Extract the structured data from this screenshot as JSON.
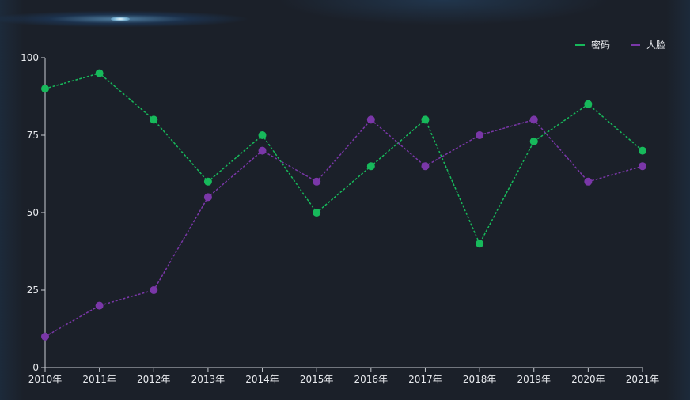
{
  "chart_data": {
    "type": "line",
    "categories": [
      "2010年",
      "2011年",
      "2012年",
      "2013年",
      "2014年",
      "2015年",
      "2016年",
      "2017年",
      "2018年",
      "2019年",
      "2020年",
      "2021年"
    ],
    "series": [
      {
        "name": "密码",
        "color": "#17b95b",
        "values": [
          90,
          95,
          80,
          60,
          75,
          50,
          65,
          80,
          40,
          73,
          85,
          70
        ]
      },
      {
        "name": "人脸",
        "color": "#7a37a8",
        "values": [
          10,
          20,
          25,
          55,
          70,
          60,
          80,
          65,
          75,
          80,
          60,
          65
        ]
      }
    ],
    "ylim": [
      0,
      100
    ],
    "yticks": [
      0,
      25,
      50,
      75,
      100
    ],
    "grid": false,
    "line_style": "dashed",
    "legend_position": "top-right"
  },
  "colors": {
    "background": "#1b2029",
    "axis": "#c8ccd2",
    "text": "#e8eaee"
  }
}
